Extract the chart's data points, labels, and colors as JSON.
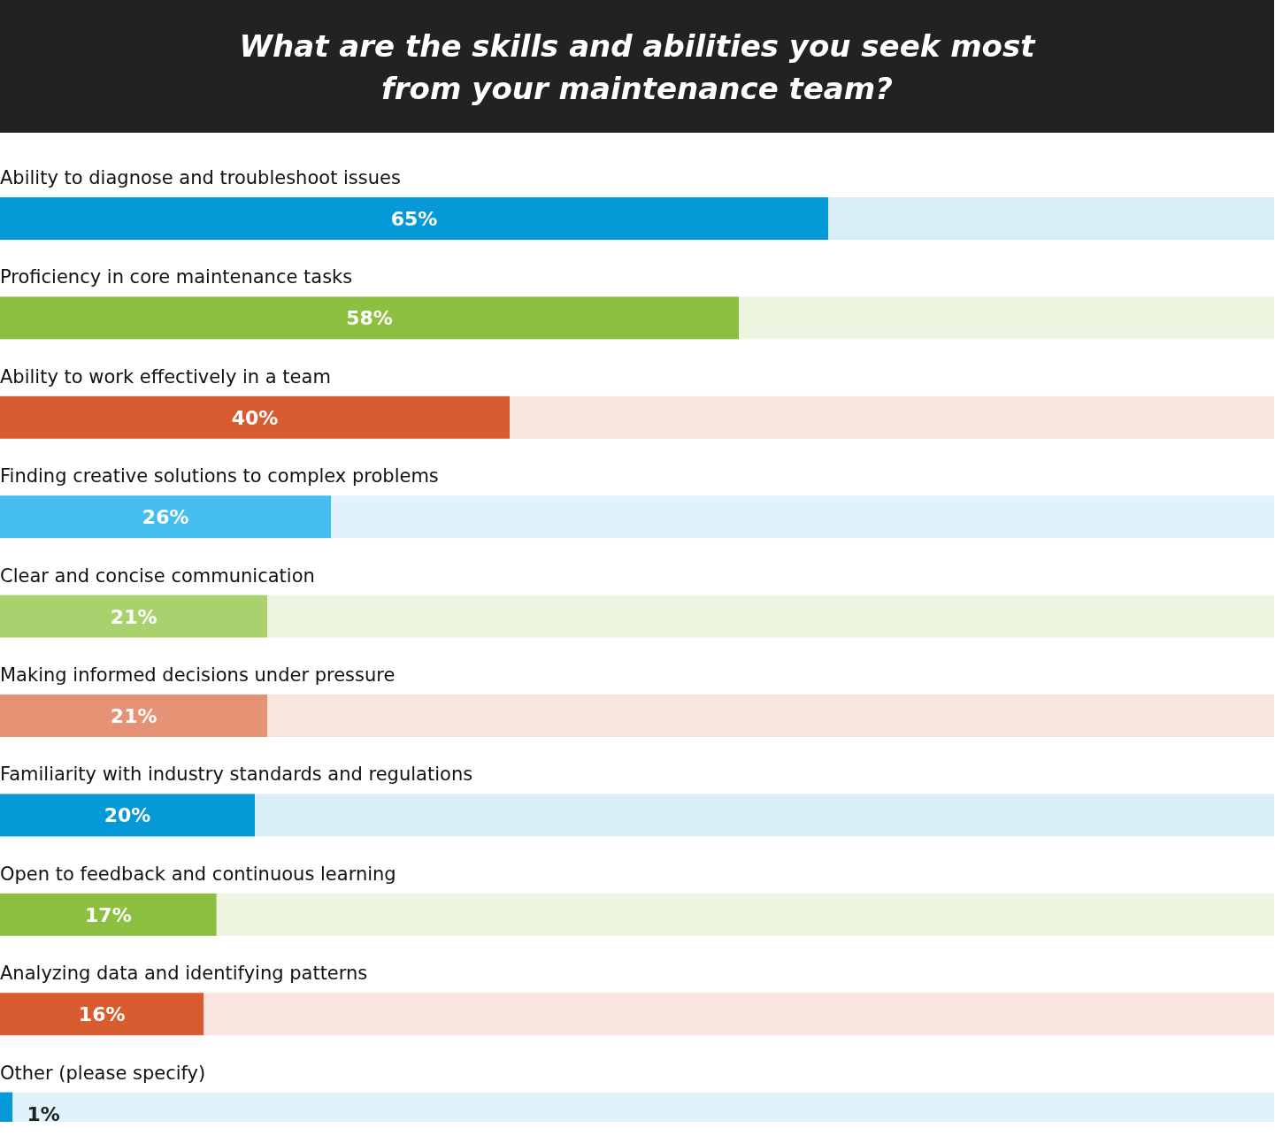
{
  "chart_data": {
    "type": "bar",
    "orientation": "horizontal",
    "stacked": true,
    "title": "What are the skills and abilities you seek most\nfrom your maintenance team?",
    "categories": [
      "Ability to diagnose and troubleshoot issues",
      "Proficiency in core maintenance tasks",
      "Ability to work effectively in a team",
      "Finding creative solutions to complex problems",
      "Clear and concise communication",
      "Making informed decisions under pressure",
      "Familiarity with industry standards and regulations",
      "Open to feedback and continuous learning",
      "Analyzing data and identifying patterns",
      "Other (please specify)"
    ],
    "xlim": [
      0,
      100
    ],
    "series": [
      {
        "values": [
          65,
          58,
          40,
          26,
          21,
          21,
          20,
          17,
          16,
          1
        ],
        "colors": [
          "#0599d8",
          "#8dc040",
          "#d95b30",
          "#45bdee",
          "#a9d26f",
          "#e59374",
          "#0599d8",
          "#8dc040",
          "#d95b30",
          "#0599d8"
        ],
        "value_labels": [
          "65%",
          "58%",
          "40%",
          "26%",
          "21%",
          "21%",
          "20%",
          "17%",
          "16%",
          "1%"
        ]
      },
      {
        "values": [
          35,
          42,
          60,
          74,
          79,
          79,
          80,
          83,
          84,
          99
        ],
        "colors": [
          "#d9eff8",
          "#edf5e0",
          "#f9e5de",
          "#e0f3fb",
          "#edf5e0",
          "#f9e5de",
          "#d9eff8",
          "#edf5e0",
          "#f9e5de",
          "#e0f3fb"
        ]
      }
    ]
  }
}
